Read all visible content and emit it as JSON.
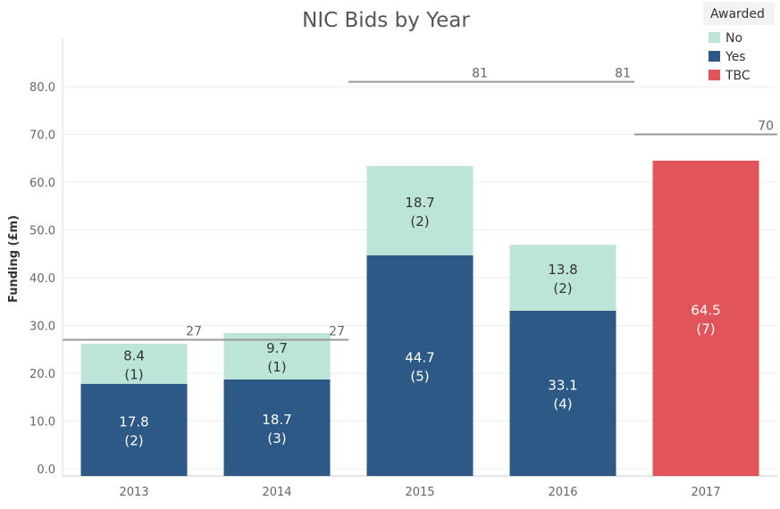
{
  "chart_data": {
    "type": "bar",
    "stacked": true,
    "title": "NIC Bids by Year",
    "xlabel": "",
    "ylabel": "Funding (£m)",
    "ylim": [
      -1.5,
      90
    ],
    "yticks": [
      0,
      10,
      20,
      30,
      40,
      50,
      60,
      70,
      80
    ],
    "ytick_labels": [
      "0.0",
      "10.0",
      "20.0",
      "30.0",
      "40.0",
      "50.0",
      "60.0",
      "70.0",
      "80.0"
    ],
    "categories": [
      "2013",
      "2014",
      "2015",
      "2016",
      "2017"
    ],
    "series": [
      {
        "name": "Yes",
        "color": "#2c5985",
        "values": [
          17.8,
          18.7,
          44.7,
          33.1,
          null
        ],
        "labels": [
          "17.8",
          "18.7",
          "44.7",
          "33.1",
          null
        ],
        "counts": [
          "(2)",
          "(3)",
          "(5)",
          "(4)",
          null
        ]
      },
      {
        "name": "No",
        "color": "#bce4d8",
        "values": [
          8.4,
          9.7,
          18.7,
          13.8,
          null
        ],
        "labels": [
          "8.4",
          "9.7",
          "18.7",
          "13.8",
          null
        ],
        "counts": [
          "(1)",
          "(1)",
          "(2)",
          "(2)",
          null
        ]
      },
      {
        "name": "TBC",
        "color": "#e1545a",
        "values": [
          null,
          null,
          null,
          null,
          64.5
        ],
        "labels": [
          null,
          null,
          null,
          null,
          "64.5"
        ],
        "counts": [
          null,
          null,
          null,
          null,
          "(7)"
        ]
      }
    ],
    "reference_lines": [
      {
        "value": 27,
        "from_category": 0,
        "to_category": 1,
        "labels": [
          "27",
          "27"
        ]
      },
      {
        "value": 81,
        "from_category": 2,
        "to_category": 3,
        "labels": [
          "81",
          "81"
        ]
      },
      {
        "value": 70,
        "from_category": 4,
        "to_category": 4,
        "labels": [
          "70"
        ]
      }
    ],
    "legend": {
      "title": "Awarded",
      "position": "top-right",
      "items": [
        {
          "label": "No",
          "color": "#bce4d8"
        },
        {
          "label": "Yes",
          "color": "#2c5985"
        },
        {
          "label": "TBC",
          "color": "#e1545a"
        }
      ]
    },
    "grid": true
  }
}
